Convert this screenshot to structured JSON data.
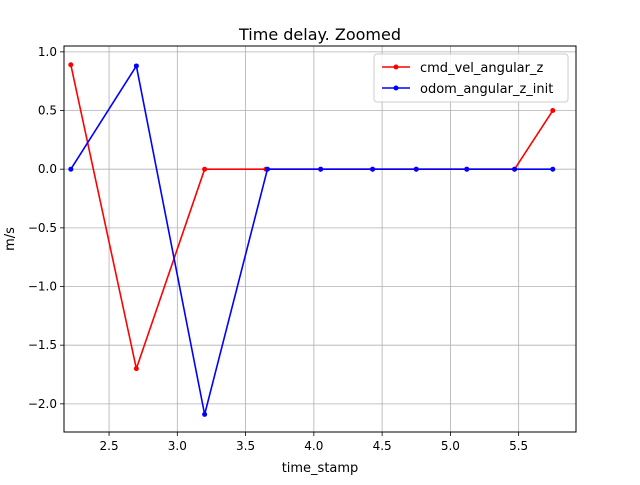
{
  "chart_data": {
    "type": "line",
    "title": "Time delay. Zoomed",
    "xlabel": "time_stamp",
    "ylabel": "m/s",
    "xlim": [
      2.17,
      5.92
    ],
    "ylim": [
      -2.24,
      1.05
    ],
    "xticks": [
      2.5,
      3.0,
      3.5,
      4.0,
      4.5,
      5.0,
      5.5
    ],
    "xtick_labels": [
      "2.5",
      "3.0",
      "3.5",
      "4.0",
      "4.5",
      "5.0",
      "5.5"
    ],
    "yticks": [
      1.0,
      0.5,
      0.0,
      -0.5,
      -1.0,
      -1.5,
      -2.0
    ],
    "ytick_labels": [
      "1.0",
      "0.5",
      "0.0",
      "−0.5",
      "−1.0",
      "−1.5",
      "−2.0"
    ],
    "grid": true,
    "legend_position": "top-right",
    "series": [
      {
        "name": "cmd_vel_angular_z",
        "color": "#ff0000",
        "x": [
          2.22,
          2.7,
          3.2,
          3.65,
          4.05,
          4.43,
          4.75,
          5.12,
          5.47,
          5.75
        ],
        "y": [
          0.89,
          -1.7,
          0.0,
          0.0,
          0.0,
          0.0,
          0.0,
          0.0,
          0.0,
          0.5
        ]
      },
      {
        "name": "odom_angular_z_init",
        "color": "#0000ff",
        "x": [
          2.22,
          2.7,
          3.2,
          3.66,
          4.05,
          4.43,
          4.75,
          5.12,
          5.47,
          5.75
        ],
        "y": [
          0.0,
          0.88,
          -2.09,
          0.0,
          0.0,
          0.0,
          0.0,
          0.0,
          0.0,
          0.0
        ]
      }
    ]
  }
}
